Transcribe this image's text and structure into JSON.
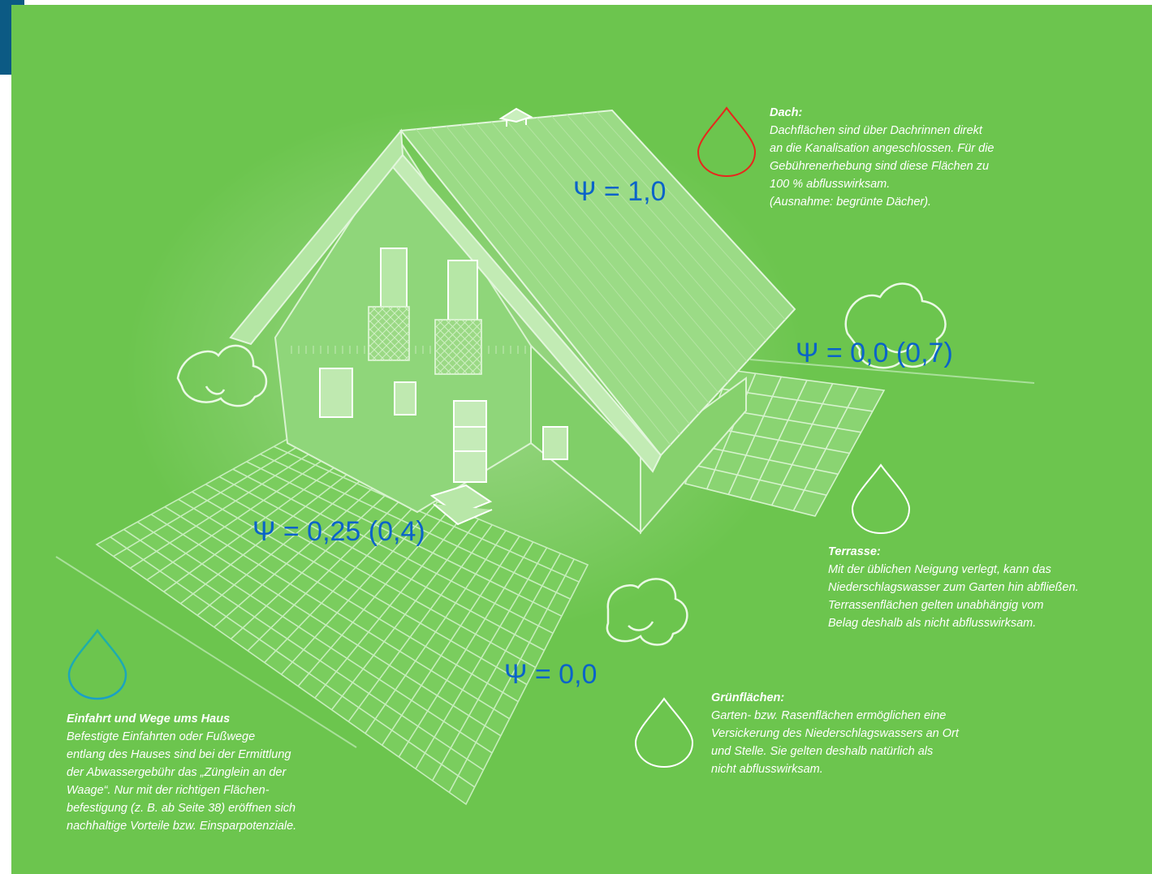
{
  "labels": {
    "dach": "Ψ = 1,0",
    "terrasse": "Ψ = 0,0 (0,7)",
    "einfahrt": "Ψ = 0,25 (0,4)",
    "gruen": "Ψ = 0,0"
  },
  "notes": {
    "dach": {
      "title": "Dach:",
      "lines": [
        "Dachflächen sind über Dachrinnen direkt",
        "an die Kanalisation angeschlossen. Für die",
        "Gebührenerhebung sind diese Flächen zu",
        "100 % abflusswirksam.",
        "(Ausnahme: begrünte Dächer)."
      ]
    },
    "terrasse": {
      "title": "Terrasse:",
      "lines": [
        "Mit der üblichen Neigung verlegt, kann das",
        "Niederschlagswasser zum Garten hin abfließen.",
        "Terrassenflächen gelten unabhängig vom",
        "Belag deshalb als nicht abflusswirksam."
      ]
    },
    "gruen": {
      "title": "Grünflächen:",
      "lines": [
        "Garten- bzw. Rasenflächen ermöglichen eine",
        "Versickerung des Niederschlagswassers an Ort",
        "und Stelle. Sie gelten deshalb natürlich als",
        "nicht abflusswirksam."
      ]
    },
    "einfahrt": {
      "title": "Einfahrt und Wege ums Haus",
      "lines": [
        "Befestigte Einfahrten oder Fußwege",
        "entlang des Hauses sind bei der Ermittlung",
        "der Abwassergebühr das „Zünglein an der",
        "Waage“. Nur mit der richtigen Flächen-",
        "befestigung (z. B. ab Seite 38) eröffnen sich",
        "nachhaltige Vorteile bzw. Einsparpotenziale."
      ]
    }
  },
  "colors": {
    "background": "#6cc54e",
    "label": "#0a63c9",
    "corner_tab": "#0c5a84",
    "drop_dach": "#e8261c",
    "drop_einfahrt": "#1aa8c8",
    "drop_terrasse": "#ffffff",
    "drop_gruen": "#ffffff",
    "text": "#ffffff"
  },
  "icons": {
    "drop": "water-drop-icon",
    "bush": "bush-icon",
    "house": "house-illustration"
  }
}
